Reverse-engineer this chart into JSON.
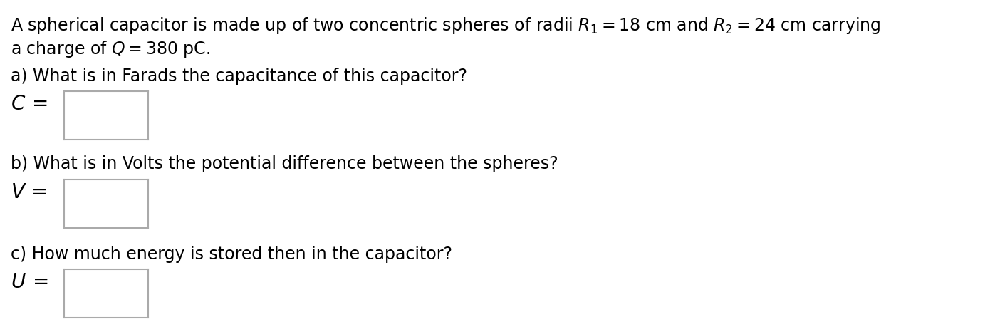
{
  "background_color": "#ffffff",
  "text_color": "#000000",
  "box_edge_color": "#aaaaaa",
  "line1": "A spherical capacitor is made up of two concentric spheres of radii $R_1 = 18$ cm and $R_2 = 24$ cm carrying",
  "line2": "a charge of $Q = 380$ pC.",
  "part_a_q": "a) What is in Farads the capacitance of this capacitor?",
  "part_a_var": "$C\\,=$",
  "part_b_q": "b) What is in Volts the potential difference between the spheres?",
  "part_b_var": "$V\\,=$",
  "part_c_q": "c) How much energy is stored then in the capacitor?",
  "part_c_var": "$U\\,=$",
  "font_size_text": 17,
  "font_size_var": 20
}
